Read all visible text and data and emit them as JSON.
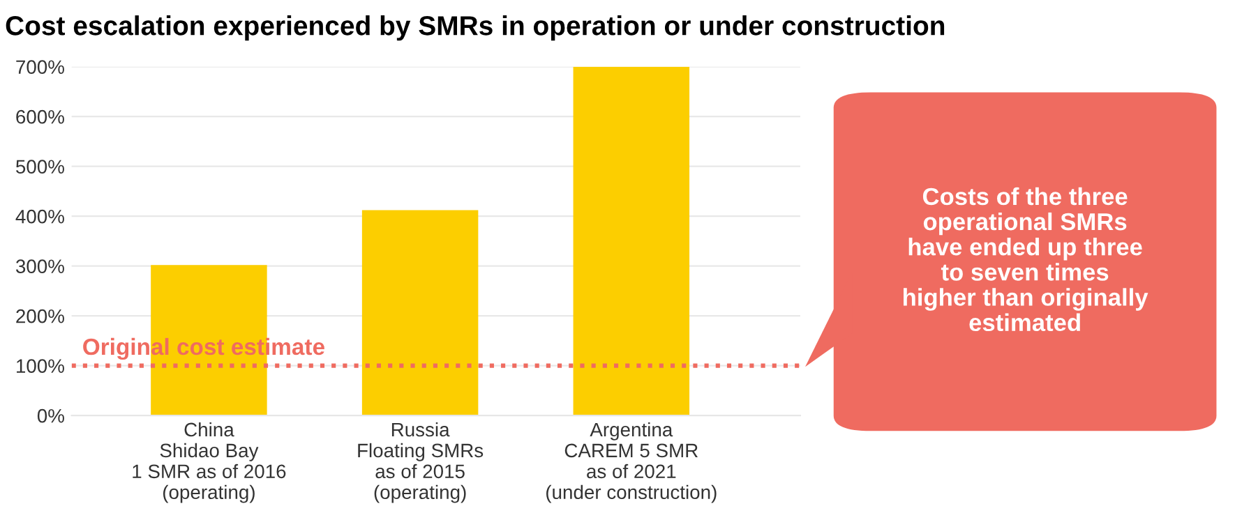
{
  "chart_data": {
    "type": "bar",
    "title": "Cost escalation experienced by SMRs in operation or under construction",
    "categories": [
      "China\nShidao Bay\n1 SMR as of 2016\n(operating)",
      "Russia\nFloating SMRs\nas of 2015\n(operating)",
      "Argentina\nCAREM 5 SMR\nas of 2021\n(under construction)"
    ],
    "values": [
      302,
      412,
      700
    ],
    "color": "#fcce00",
    "ylim": [
      0,
      700
    ],
    "yticks": [
      {
        "value": 0,
        "label": "0%"
      },
      {
        "value": 100,
        "label": "100%"
      },
      {
        "value": 200,
        "label": "200%"
      },
      {
        "value": 300,
        "label": "300%"
      },
      {
        "value": 400,
        "label": "400%"
      },
      {
        "value": 500,
        "label": "500%"
      },
      {
        "value": 600,
        "label": "600%"
      },
      {
        "value": 700,
        "label": "700%"
      }
    ],
    "grid": "y",
    "ref_lines": [
      {
        "axis": "y",
        "value": 100,
        "label": "Original cost estimate",
        "color": "#ef6b60",
        "line_style": "dotted"
      }
    ],
    "annotations": [
      "Costs of the three operational SMRs have ended up three to seven times higher than originally estimated"
    ]
  }
}
